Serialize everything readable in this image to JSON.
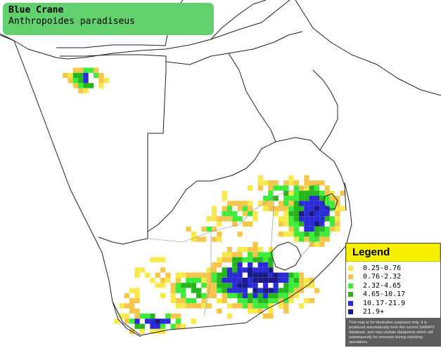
{
  "title": {
    "common_name": "Blue Crane",
    "scientific_name": "Anthropoides paradiseus"
  },
  "legend": {
    "heading": "Legend",
    "items": [
      {
        "label": "0.25-0.76",
        "color": "#f7e94a"
      },
      {
        "label": "0.76-2.32",
        "color": "#f4c64a"
      },
      {
        "label": "2.32-4.65",
        "color": "#3dec3a"
      },
      {
        "label": "4.65-10.17",
        "color": "#27b51e"
      },
      {
        "label": "10.17-21.9",
        "color": "#2a2ad6"
      },
      {
        "label": "21.9+",
        "color": "#1b1b86"
      }
    ],
    "disclaimer": "This map is for illustrative purposes only; it is produced automatically from the current SABAP2 database, and may contain datapoints which will subsequently be removed during checking operations."
  },
  "colors": {
    "title_background": "#62d06c",
    "legend_header": "#f6f000",
    "land_outline": "#1f1f1f"
  }
}
